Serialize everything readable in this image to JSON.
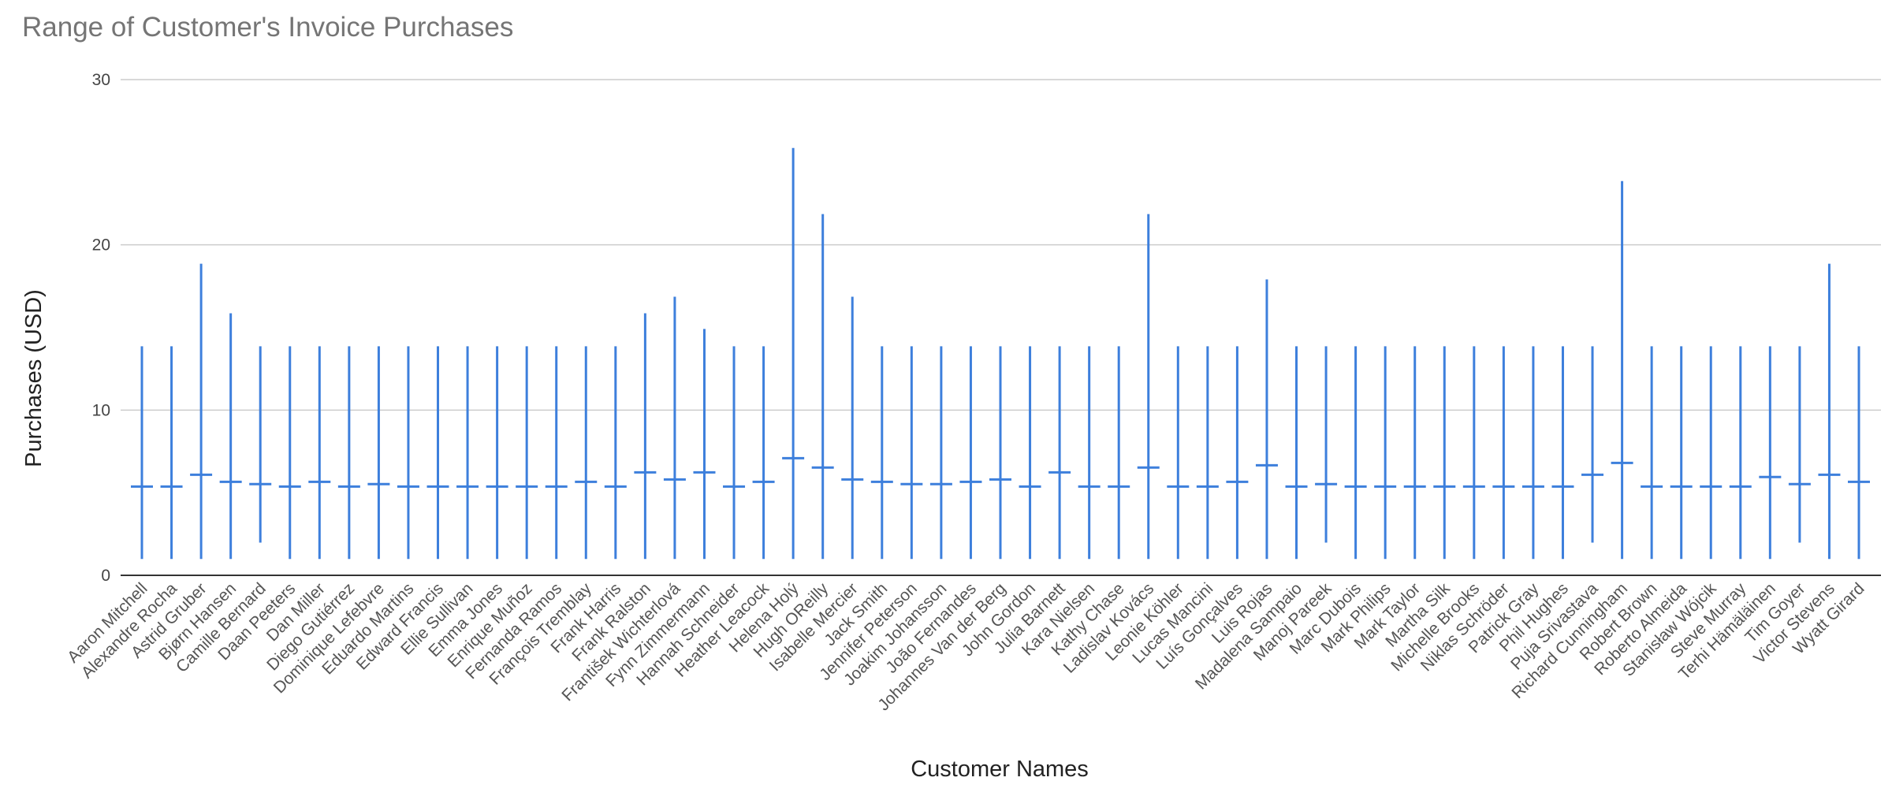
{
  "colors": {
    "series": "#3d7fdc",
    "grid": "#cccccc",
    "title": "#757575"
  },
  "chart_data": {
    "type": "candlestick-range",
    "title": "Range of Customer's Invoice Purchases",
    "xlabel": "Customer Names",
    "ylabel": "Purchases (USD)",
    "ylim": [
      0,
      30
    ],
    "yticks": [
      0,
      10,
      20,
      30
    ],
    "grid": true,
    "legend": "none",
    "categories": [
      "Aaron Mitchell",
      "Alexandre Rocha",
      "Astrid Gruber",
      "Bjørn Hansen",
      "Camille Bernard",
      "Daan Peeters",
      "Dan Miller",
      "Diego Gutiérrez",
      "Dominique Lefebvre",
      "Eduardo Martins",
      "Edward Francis",
      "Ellie Sullivan",
      "Emma Jones",
      "Enrique Muñoz",
      "Fernanda Ramos",
      "François Tremblay",
      "Frank Harris",
      "Frank Ralston",
      "František Wichterlová",
      "Fynn Zimmermann",
      "Hannah Schneider",
      "Heather Leacock",
      "Helena Holý",
      "Hugh OReilly",
      "Isabelle Mercier",
      "Jack Smith",
      "Jennifer Peterson",
      "Joakim Johansson",
      "João Fernandes",
      "Johannes Van der Berg",
      "John Gordon",
      "Julia Barnett",
      "Kara Nielsen",
      "Kathy Chase",
      "Ladislav Kovács",
      "Leonie Köhler",
      "Lucas Mancini",
      "Luís Gonçalves",
      "Luis Rojas",
      "Madalena Sampaio",
      "Manoj Pareek",
      "Marc Dubois",
      "Mark Philips",
      "Mark Taylor",
      "Martha Silk",
      "Michelle Brooks",
      "Niklas Schröder",
      "Patrick Gray",
      "Phil Hughes",
      "Puja Srivastava",
      "Richard Cunningham",
      "Robert Brown",
      "Roberto Almeida",
      "Stanisław Wójcik",
      "Steve Murray",
      "Terhi Hämäläinen",
      "Tim Goyer",
      "Victor Stevens",
      "Wyatt Girard"
    ],
    "min": [
      0.99,
      0.99,
      0.99,
      0.99,
      1.98,
      0.99,
      0.99,
      0.99,
      0.99,
      0.99,
      0.99,
      0.99,
      0.99,
      0.99,
      0.99,
      0.99,
      0.99,
      0.99,
      0.99,
      0.99,
      0.99,
      0.99,
      0.99,
      0.99,
      0.99,
      0.99,
      0.99,
      0.99,
      0.99,
      0.99,
      0.99,
      0.99,
      0.99,
      0.99,
      0.99,
      0.99,
      0.99,
      0.99,
      0.99,
      0.99,
      1.98,
      0.99,
      0.99,
      0.99,
      0.99,
      0.99,
      0.99,
      0.99,
      0.99,
      1.98,
      0.99,
      0.99,
      0.99,
      0.99,
      0.99,
      0.99,
      1.98,
      0.99,
      0.99
    ],
    "max": [
      13.86,
      13.86,
      18.86,
      15.86,
      13.86,
      13.86,
      13.86,
      13.86,
      13.86,
      13.86,
      13.86,
      13.86,
      13.86,
      13.86,
      13.86,
      13.86,
      13.86,
      15.86,
      16.86,
      14.91,
      13.86,
      13.86,
      25.86,
      21.86,
      16.86,
      13.86,
      13.86,
      13.86,
      13.86,
      13.86,
      13.86,
      13.86,
      13.86,
      13.86,
      21.86,
      13.86,
      13.86,
      13.86,
      17.91,
      13.86,
      13.86,
      13.86,
      13.86,
      13.86,
      13.86,
      13.86,
      13.86,
      13.86,
      13.86,
      13.86,
      23.86,
      13.86,
      13.86,
      13.86,
      13.86,
      13.86,
      13.86,
      18.86,
      13.86
    ],
    "mean": [
      5.37,
      5.37,
      6.09,
      5.66,
      5.52,
      5.37,
      5.66,
      5.37,
      5.52,
      5.37,
      5.37,
      5.37,
      5.37,
      5.37,
      5.37,
      5.66,
      5.37,
      6.23,
      5.8,
      6.23,
      5.37,
      5.66,
      7.09,
      6.52,
      5.8,
      5.66,
      5.52,
      5.52,
      5.66,
      5.8,
      5.37,
      6.23,
      5.37,
      5.37,
      6.52,
      5.37,
      5.37,
      5.66,
      6.66,
      5.37,
      5.52,
      5.37,
      5.37,
      5.37,
      5.37,
      5.37,
      5.37,
      5.37,
      5.37,
      6.09,
      6.8,
      5.37,
      5.37,
      5.37,
      5.37,
      5.95,
      5.52,
      6.09,
      5.66
    ]
  }
}
